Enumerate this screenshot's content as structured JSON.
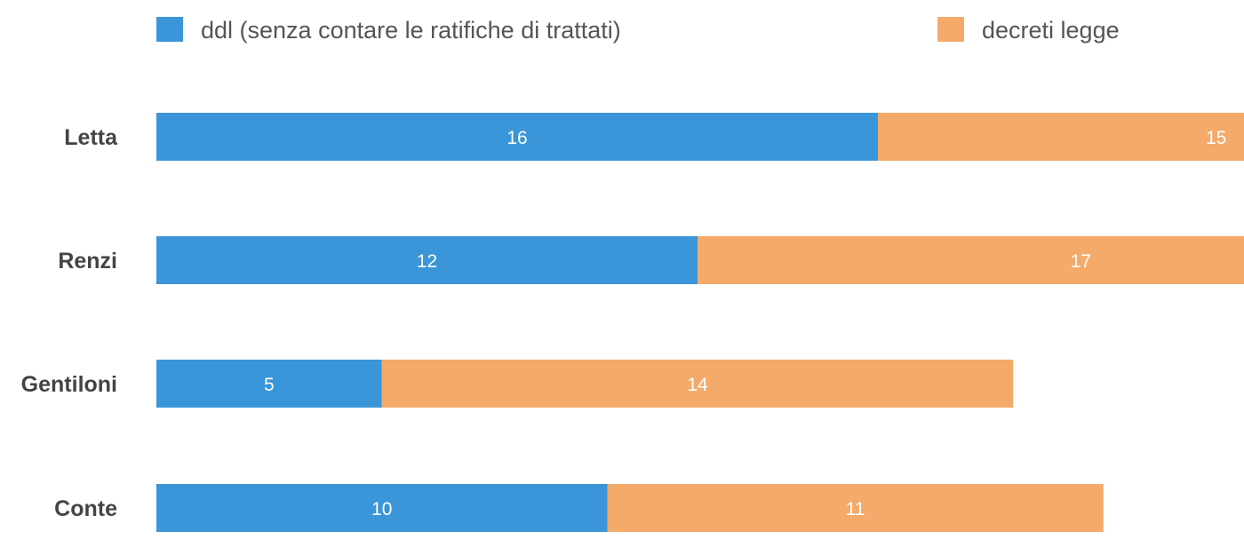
{
  "chart_data": {
    "type": "bar",
    "orientation": "horizontal",
    "stacked": true,
    "title": "",
    "xlabel": "",
    "ylabel": "",
    "categories": [
      "Letta",
      "Renzi",
      "Gentiloni",
      "Conte"
    ],
    "series": [
      {
        "name": "ddl (senza contare le ratifiche di trattati)",
        "color": "#3a96d8",
        "values": [
          16,
          12,
          5,
          10
        ]
      },
      {
        "name": "decreti legge",
        "color": "#f4aa6a",
        "values": [
          15,
          17,
          14,
          11
        ]
      }
    ],
    "legend_position": "top",
    "grid": false
  }
}
